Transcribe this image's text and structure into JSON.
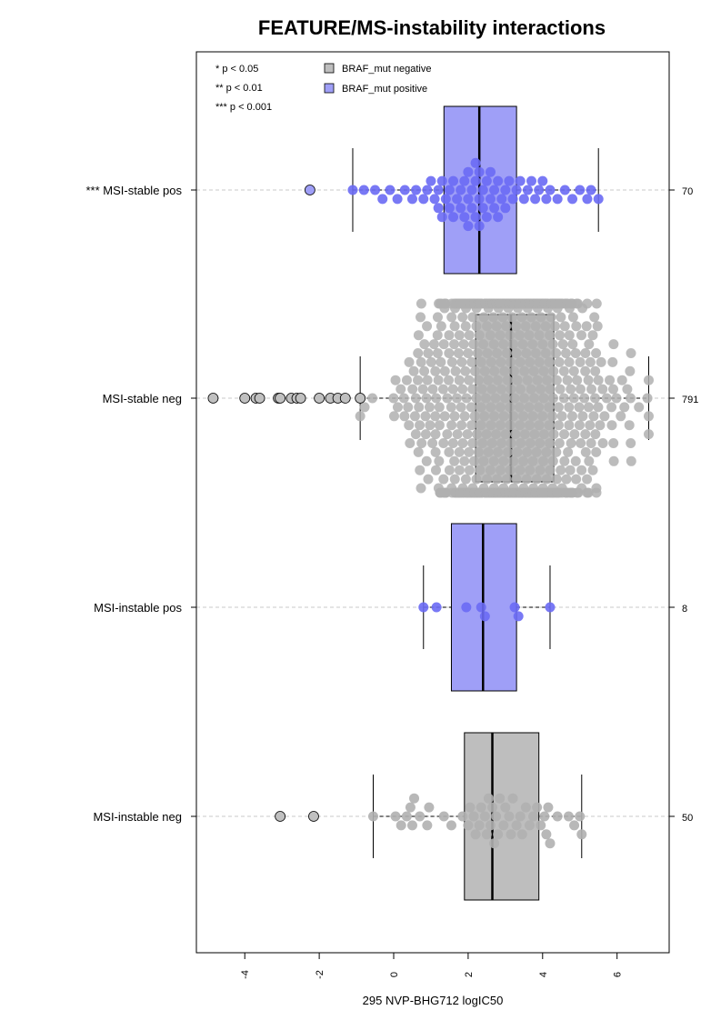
{
  "chart_data": {
    "type": "beeswarm-boxplot",
    "orientation": "horizontal",
    "title": "FEATURE/MS-instability interactions",
    "xlabel": "295 NVP-BHG712 logIC50",
    "xlim": [
      -5.3,
      7.4
    ],
    "xticks": [
      -4,
      -2,
      0,
      2,
      4,
      6
    ],
    "xtick_labels": [
      "-4",
      "-2",
      "0",
      "2",
      "4",
      "6"
    ],
    "legend": {
      "significance": [
        "* p < 0.05",
        "** p < 0.01",
        "*** p < 0.001"
      ],
      "entries": [
        {
          "label": "BRAF_mut negative",
          "color": "#bebebe"
        },
        {
          "label": "BRAF_mut positive",
          "color": "#9f9ff7"
        }
      ],
      "placement": "top-left"
    },
    "groups": [
      {
        "label": "*** MSI-stable pos",
        "count": "70",
        "braf": "positive",
        "box_fill": "#9f9ff7",
        "point_color": "#6a6af4",
        "whisker_low": -1.1,
        "q1": 1.35,
        "median": 2.3,
        "q3": 3.3,
        "whisker_high": 5.5,
        "outliers": [
          -2.25
        ],
        "values": [
          -1.1,
          -0.8,
          -0.5,
          -0.3,
          -0.1,
          0.1,
          0.3,
          0.5,
          0.6,
          0.8,
          0.9,
          1.0,
          1.1,
          1.2,
          1.2,
          1.3,
          1.3,
          1.4,
          1.5,
          1.5,
          1.6,
          1.6,
          1.7,
          1.8,
          1.8,
          1.9,
          1.9,
          2.0,
          2.0,
          2.0,
          2.1,
          2.1,
          2.2,
          2.2,
          2.2,
          2.3,
          2.3,
          2.3,
          2.4,
          2.4,
          2.5,
          2.5,
          2.6,
          2.6,
          2.7,
          2.7,
          2.8,
          2.8,
          2.9,
          3.0,
          3.0,
          3.1,
          3.2,
          3.3,
          3.4,
          3.5,
          3.6,
          3.7,
          3.8,
          4.0,
          4.2,
          4.4,
          4.6,
          4.8,
          5.0,
          5.2,
          5.5,
          5.3,
          4.1,
          3.9
        ]
      },
      {
        "label": "MSI-stable neg",
        "count": "791",
        "braf": "negative",
        "box_fill": "#bebebe",
        "point_color": "#b0b0b0",
        "whisker_low": -0.9,
        "q1": 2.2,
        "median": 3.15,
        "q3": 4.3,
        "whisker_high": 6.85,
        "outliers": [
          -4.85,
          -4.0,
          -3.7,
          -3.6,
          -3.1,
          -3.05,
          -2.75,
          -2.6,
          -2.5,
          -2.0,
          -1.7,
          -1.5,
          -1.3,
          -0.9
        ],
        "values": []
      },
      {
        "label": "MSI-instable pos",
        "count": "8",
        "braf": "positive",
        "box_fill": "#9f9ff7",
        "point_color": "#6a6af4",
        "whisker_low": 0.8,
        "q1": 1.55,
        "median": 2.4,
        "q3": 3.3,
        "whisker_high": 4.2,
        "outliers": [],
        "values": [
          0.8,
          1.15,
          1.95,
          2.35,
          2.45,
          3.25,
          3.35,
          4.2
        ]
      },
      {
        "label": "MSI-instable neg",
        "count": "50",
        "braf": "negative",
        "box_fill": "#bebebe",
        "point_color": "#b0b0b0",
        "whisker_low": -0.55,
        "q1": 1.9,
        "median": 2.65,
        "q3": 3.9,
        "whisker_high": 5.05,
        "outliers": [
          -3.05,
          -2.15
        ],
        "values": [
          -0.55,
          0.05,
          0.2,
          0.35,
          0.45,
          0.5,
          0.55,
          0.7,
          0.9,
          0.95,
          1.35,
          1.55,
          1.85,
          2.0,
          2.05,
          2.15,
          2.2,
          2.3,
          2.35,
          2.45,
          2.5,
          2.55,
          2.6,
          2.65,
          2.7,
          2.75,
          2.8,
          2.85,
          2.95,
          3.0,
          3.1,
          3.15,
          3.2,
          3.3,
          3.4,
          3.45,
          3.55,
          3.65,
          3.75,
          3.85,
          3.95,
          4.05,
          4.1,
          4.15,
          4.2,
          4.4,
          4.7,
          4.85,
          5.05,
          5.0
        ]
      }
    ]
  }
}
